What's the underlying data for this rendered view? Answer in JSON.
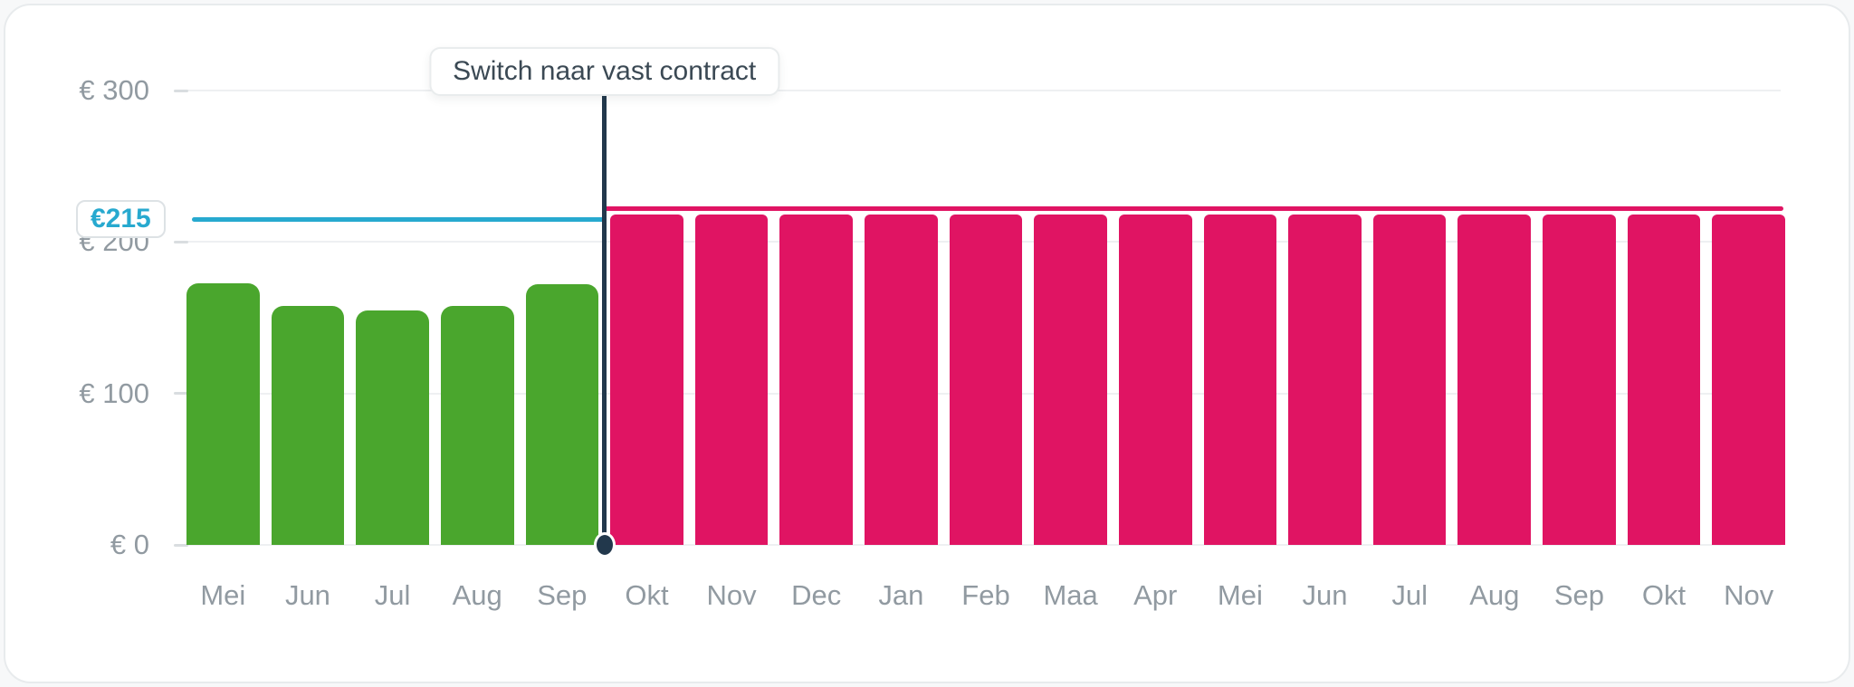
{
  "colors": {
    "green": "#4aa62d",
    "pink": "#e01463",
    "cyan": "#27a9cf",
    "navy": "#22384c",
    "axis_text": "#919aa1",
    "gridline": "#eef0f2",
    "tooltip_text": "#3b4954",
    "card_border": "#e8ebed",
    "background": "#ffffff"
  },
  "chart_data": {
    "type": "bar",
    "categories": [
      "Mei",
      "Jun",
      "Jul",
      "Aug",
      "Sep",
      "Okt",
      "Nov",
      "Dec",
      "Jan",
      "Feb",
      "Maa",
      "Apr",
      "Mei",
      "Jun",
      "Jul",
      "Aug",
      "Sep",
      "Okt",
      "Nov"
    ],
    "values": [
      173,
      158,
      155,
      158,
      172,
      218,
      218,
      218,
      218,
      218,
      218,
      218,
      218,
      218,
      218,
      218,
      218,
      218,
      218
    ],
    "segments": [
      "green",
      "green",
      "green",
      "green",
      "green",
      "pink",
      "pink",
      "pink",
      "pink",
      "pink",
      "pink",
      "pink",
      "pink",
      "pink",
      "pink",
      "pink",
      "pink",
      "pink",
      "pink"
    ],
    "title": "",
    "xlabel": "",
    "ylabel": "",
    "ylim": [
      0,
      300
    ],
    "grid": true,
    "y_ticks": [
      {
        "label": "€ 300",
        "value": 300
      },
      {
        "label": "€ 200",
        "value": 200
      },
      {
        "label": "€ 100",
        "value": 100
      },
      {
        "label": "€ 0",
        "value": 0
      }
    ],
    "reference_lines": [
      {
        "label": "€215",
        "value": 215,
        "color_key": "cyan",
        "extent": "left-of-annotation"
      },
      {
        "label": "",
        "value": 222,
        "color_key": "pink",
        "extent": "right-of-annotation"
      }
    ],
    "annotation": {
      "label": "Switch naar vast contract",
      "position": "boundary between Sep and Okt (after 5th bar)",
      "marker": "vertical-line-with-dot-at-baseline"
    }
  }
}
